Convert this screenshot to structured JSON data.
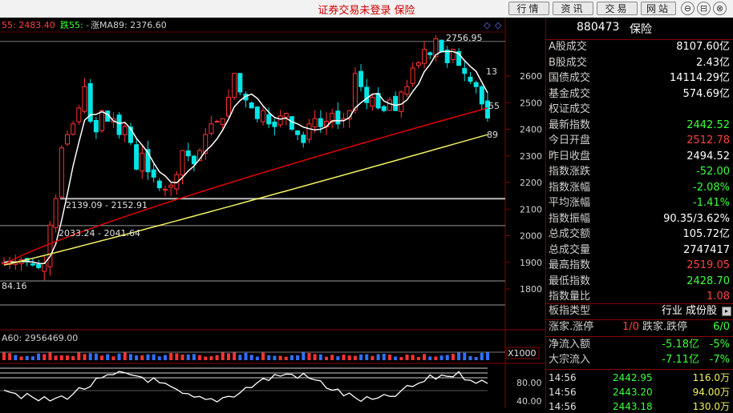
{
  "window": {
    "title": "证券交易未登录  保险",
    "buttons": [
      "行情",
      "资讯",
      "交易",
      "网站"
    ],
    "controls": [
      "⊖",
      "⊟",
      "⊗"
    ]
  },
  "chart_header": {
    "ma_label_1": "55: 2483.40",
    "ma_label_2": "跌55: -",
    "ma_label_3": "涨MA89: 2376.60"
  },
  "chart_annotations": {
    "high": "2756.95",
    "low": "84.16",
    "gap_upper": "2139.09 - 2152.91",
    "gap_lower": "2033.24 - 2041.64",
    "ma_tag_13": "13",
    "ma_tag_55": "55",
    "ma_tag_89": "89"
  },
  "y_axis": [
    "2600",
    "2500",
    "2400",
    "2300",
    "2200",
    "2100",
    "2000",
    "1900",
    "1800"
  ],
  "volume": {
    "label": "A60: 2956469.00",
    "multiplier": "X1000"
  },
  "indicator": {
    "ticks": [
      "80.00",
      "40.00"
    ]
  },
  "panel": {
    "code": "880473",
    "name": "保险",
    "rows": [
      {
        "label": "A股成交",
        "value": "8107.60亿",
        "color": "#ffffff"
      },
      {
        "label": "B股成交",
        "value": "2.43亿",
        "color": "#ffffff"
      },
      {
        "label": "国债成交",
        "value": "14114.29亿",
        "color": "#ffffff"
      },
      {
        "label": "基金成交",
        "value": "574.69亿",
        "color": "#ffffff"
      },
      {
        "label": "权证成交",
        "value": "",
        "color": "#ffffff"
      },
      {
        "label": "最新指数",
        "value": "2442.52",
        "color": "#3cff3c"
      },
      {
        "label": "今日开盘",
        "value": "2512.78",
        "color": "#ff4040"
      },
      {
        "label": "昨日收盘",
        "value": "2494.52",
        "color": "#ffffff"
      },
      {
        "label": "指数涨跌",
        "value": "-52.00",
        "color": "#3cff3c"
      },
      {
        "label": "指数涨幅",
        "value": "-2.08%",
        "color": "#3cff3c"
      },
      {
        "label": "平均涨幅",
        "value": "-1.41%",
        "color": "#3cff3c"
      },
      {
        "label": "指数振幅",
        "value": "90.35/3.62%",
        "color": "#ffffff"
      },
      {
        "label": "总成交额",
        "value": "105.72亿",
        "color": "#ffffff"
      },
      {
        "label": "总成交量",
        "value": "2747417",
        "color": "#ffffff"
      },
      {
        "label": "最高指数",
        "value": "2519.05",
        "color": "#ff4040"
      },
      {
        "label": "最低指数",
        "value": "2428.70",
        "color": "#3cff3c"
      },
      {
        "label": "指数量比",
        "value": "1.08",
        "color": "#ff4040"
      }
    ],
    "board_type": {
      "label": "板指类型",
      "value": "行业 成份股"
    },
    "limits": {
      "up_label": "涨家.涨停",
      "up_value": "1/0",
      "down_label": "跌家.跌停",
      "down_value": "6/0"
    },
    "flows": [
      {
        "label": "净流入额",
        "value": "-5.18亿",
        "pct": "-5%"
      },
      {
        "label": "大宗流入",
        "value": "-7.11亿",
        "pct": "-7%"
      }
    ],
    "ticks": [
      {
        "time": "14:56",
        "price": "2442.95",
        "vol": "116.0万"
      },
      {
        "time": "14:56",
        "price": "2443.20",
        "vol": "94.00万"
      },
      {
        "time": "14:56",
        "price": "2443.18",
        "vol": "130.0万"
      }
    ]
  },
  "colors": {
    "up": "#ff3232",
    "down": "#00e5e5",
    "ma13": "#ffffff",
    "ma55": "#e00000",
    "ma89": "#f0f060",
    "panel_green": "#3cff3c",
    "panel_red": "#ff4040"
  }
}
